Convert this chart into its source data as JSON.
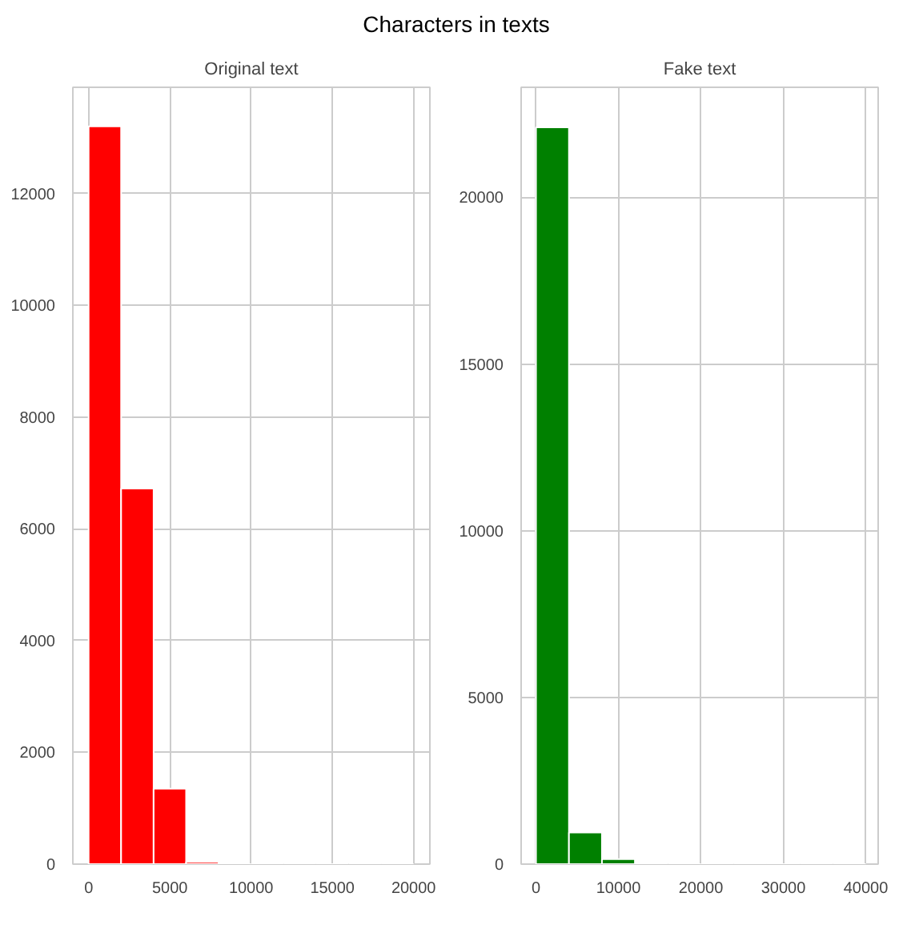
{
  "chart_data": [
    {
      "type": "histogram",
      "title": "Original text",
      "annotations": [
        "Characters in texts"
      ],
      "bins": [
        0,
        2000,
        4000,
        6000,
        8000,
        10000,
        12000,
        14000,
        16000,
        18000,
        20000
      ],
      "values": [
        13200,
        6720,
        1350,
        40,
        0,
        0,
        0,
        0,
        0,
        0
      ],
      "color": "#ff0000",
      "xlim": [
        -970,
        21000
      ],
      "ylim": [
        0,
        13900
      ],
      "xticks": [
        0,
        5000,
        10000,
        15000,
        20000
      ],
      "yticks": [
        0,
        2000,
        4000,
        6000,
        8000,
        10000,
        12000
      ],
      "grid": true
    },
    {
      "type": "histogram",
      "title": "Fake text",
      "bins": [
        0,
        4000,
        8000,
        12000,
        16000,
        20000,
        24000,
        28000,
        32000,
        36000,
        40000
      ],
      "values": [
        22100,
        950,
        150,
        0,
        0,
        0,
        0,
        0,
        0,
        0
      ],
      "color": "#008000",
      "xlim": [
        -1800,
        41500
      ],
      "ylim": [
        0,
        23300
      ],
      "xticks": [
        0,
        10000,
        20000,
        30000,
        40000
      ],
      "yticks": [
        0,
        5000,
        10000,
        15000,
        20000
      ],
      "grid": true
    }
  ]
}
